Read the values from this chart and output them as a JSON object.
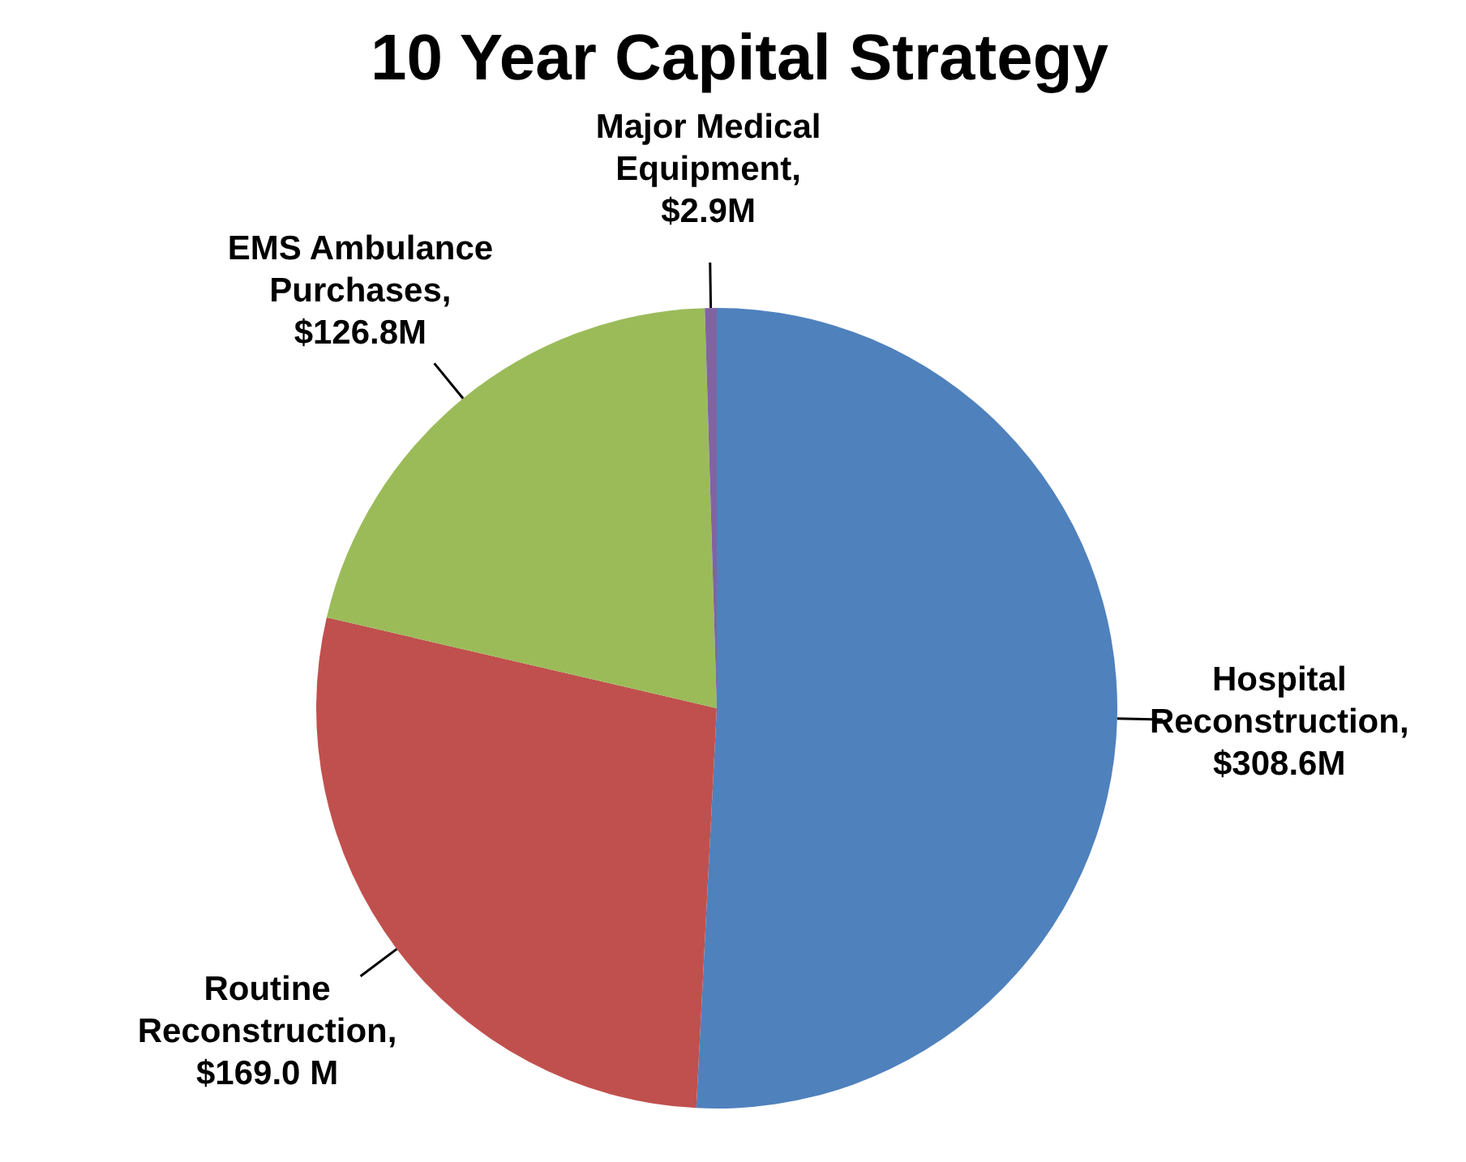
{
  "chart_data": {
    "type": "pie",
    "title": "10 Year Capital Strategy",
    "categories": [
      "Hospital Reconstruction, $308.6M",
      "Routine Reconstruction, $169.0 M",
      "EMS Ambulance Purchases, $126.8M",
      "Major Medical Equipment, $2.9M"
    ],
    "values": [
      308.6,
      169.0,
      126.8,
      2.9
    ],
    "colors": [
      "#4f81bd",
      "#c0504d",
      "#9bbb59",
      "#8064a2"
    ],
    "legend": false
  }
}
